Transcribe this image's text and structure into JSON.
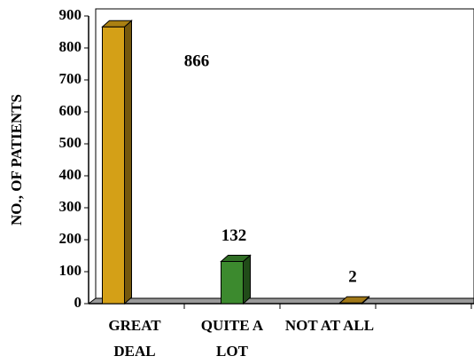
{
  "chart_data": {
    "type": "bar",
    "ylabel": "NO., OF PATIENTS",
    "categories": [
      "GREAT DEAL",
      "QUITE A LOT",
      "NOT AT ALL"
    ],
    "values": [
      866,
      132,
      2
    ],
    "colors": [
      "#d4a017",
      "#3c8a2e",
      "#c8961e"
    ],
    "ylim": [
      0,
      900
    ],
    "yticks": [
      0,
      100,
      200,
      300,
      400,
      500,
      600,
      700,
      800,
      900
    ]
  }
}
